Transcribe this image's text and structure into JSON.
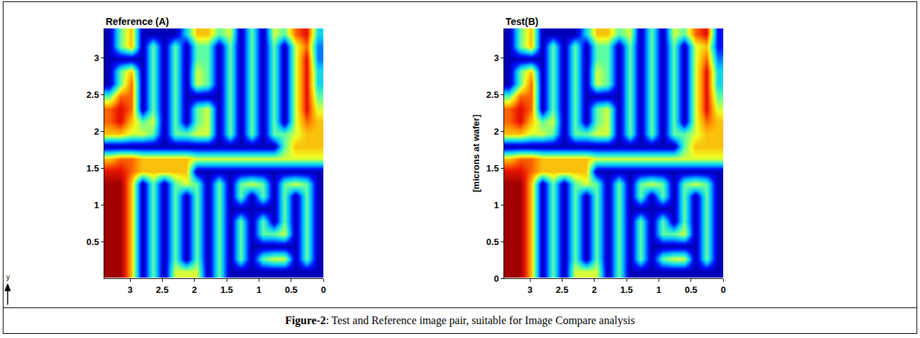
{
  "chart_data": [
    {
      "type": "heatmap",
      "title": "Reference (A)",
      "annotations": [
        "y"
      ],
      "x": [
        3.32,
        3.15,
        2.98,
        2.81,
        2.64,
        2.47,
        2.3,
        2.13,
        1.96,
        1.79,
        1.62,
        1.45,
        1.28,
        1.11,
        0.94,
        0.77,
        0.6,
        0.43,
        0.26,
        0.09
      ],
      "y": [
        3.32,
        3.15,
        2.98,
        2.81,
        2.64,
        2.47,
        2.3,
        2.13,
        1.96,
        1.79,
        1.62,
        1.45,
        1.28,
        1.11,
        0.94,
        0.77,
        0.6,
        0.43,
        0.26,
        0.09
      ],
      "z": [
        [
          0,
          4,
          6,
          0,
          0,
          0,
          0,
          3,
          6,
          6,
          4,
          5,
          0,
          4,
          0,
          5,
          4,
          7,
          8,
          3
        ],
        [
          0,
          4,
          6,
          0,
          4,
          0,
          4,
          0,
          4,
          4,
          0,
          4,
          0,
          4,
          0,
          4,
          0,
          5,
          7,
          2
        ],
        [
          0,
          0,
          0,
          0,
          4,
          0,
          4,
          0,
          4,
          4,
          0,
          4,
          0,
          4,
          0,
          4,
          0,
          5,
          8,
          2
        ],
        [
          0,
          4,
          6,
          0,
          4,
          0,
          4,
          0,
          5,
          4,
          0,
          4,
          0,
          4,
          0,
          4,
          0,
          5,
          8,
          3
        ],
        [
          0,
          4,
          7,
          0,
          4,
          0,
          4,
          0,
          5,
          4,
          0,
          4,
          0,
          4,
          0,
          4,
          0,
          5,
          8,
          3
        ],
        [
          4,
          7,
          7,
          0,
          4,
          0,
          4,
          0,
          0,
          0,
          0,
          4,
          0,
          4,
          0,
          4,
          0,
          5,
          8,
          4
        ],
        [
          7,
          8,
          7,
          0,
          4,
          0,
          4,
          0,
          4,
          5,
          0,
          4,
          0,
          4,
          0,
          4,
          0,
          5,
          8,
          5
        ],
        [
          7,
          8,
          6,
          4,
          5,
          0,
          4,
          0,
          4,
          5,
          0,
          4,
          0,
          4,
          0,
          4,
          0,
          5,
          7,
          6
        ],
        [
          6,
          6,
          5,
          5,
          4,
          0,
          4,
          4,
          5,
          5,
          0,
          4,
          0,
          4,
          0,
          4,
          4,
          5,
          6,
          6
        ],
        [
          0,
          0,
          0,
          0,
          0,
          0,
          0,
          0,
          0,
          0,
          0,
          0,
          0,
          0,
          0,
          0,
          4,
          6,
          6,
          6
        ],
        [
          6,
          7,
          7,
          6,
          6,
          6,
          6,
          6,
          5,
          5,
          5,
          5,
          5,
          5,
          5,
          5,
          5,
          5,
          5,
          5
        ],
        [
          8,
          8,
          7,
          6,
          6,
          6,
          6,
          6,
          0,
          0,
          0,
          0,
          0,
          0,
          0,
          0,
          0,
          0,
          0,
          0
        ],
        [
          9,
          9,
          6,
          0,
          4,
          0,
          4,
          5,
          4,
          0,
          4,
          0,
          4,
          5,
          4,
          0,
          4,
          5,
          4,
          0
        ],
        [
          9,
          9,
          6,
          0,
          4,
          0,
          4,
          0,
          4,
          0,
          4,
          0,
          4,
          0,
          4,
          0,
          4,
          0,
          4,
          0
        ],
        [
          9,
          9,
          6,
          0,
          4,
          0,
          4,
          0,
          4,
          0,
          4,
          0,
          0,
          0,
          0,
          0,
          4,
          0,
          4,
          0
        ],
        [
          9,
          9,
          6,
          0,
          4,
          0,
          4,
          0,
          4,
          0,
          4,
          0,
          4,
          0,
          4,
          0,
          4,
          0,
          4,
          0
        ],
        [
          9,
          9,
          6,
          0,
          4,
          0,
          4,
          0,
          4,
          0,
          4,
          0,
          4,
          0,
          4,
          4,
          5,
          0,
          4,
          0
        ],
        [
          9,
          9,
          6,
          0,
          4,
          0,
          4,
          0,
          4,
          0,
          4,
          0,
          4,
          0,
          0,
          0,
          0,
          0,
          4,
          0
        ],
        [
          9,
          9,
          6,
          0,
          4,
          0,
          4,
          0,
          4,
          0,
          4,
          0,
          4,
          0,
          4,
          5,
          5,
          0,
          4,
          0
        ],
        [
          9,
          9,
          6,
          0,
          4,
          0,
          5,
          5,
          5,
          0,
          4,
          0,
          0,
          0,
          0,
          0,
          0,
          0,
          0,
          0
        ]
      ],
      "zlim": [
        0,
        9
      ],
      "xlim": [
        3.4,
        0
      ],
      "xticks": [
        3,
        2.5,
        2,
        1.5,
        1,
        0.5,
        0
      ],
      "ylim": [
        0,
        3.4
      ],
      "yticks": [
        0.5,
        1,
        1.5,
        2,
        2.5,
        3
      ]
    },
    {
      "type": "heatmap",
      "title": "Test(B)",
      "y_label": "[microns at wafer]",
      "x": [
        3.32,
        3.15,
        2.98,
        2.81,
        2.64,
        2.47,
        2.3,
        2.13,
        1.96,
        1.79,
        1.62,
        1.45,
        1.28,
        1.11,
        0.94,
        0.77,
        0.6,
        0.43,
        0.26,
        0.09
      ],
      "y": [
        3.32,
        3.15,
        2.98,
        2.81,
        2.64,
        2.47,
        2.3,
        2.13,
        1.96,
        1.79,
        1.62,
        1.45,
        1.28,
        1.11,
        0.94,
        0.77,
        0.6,
        0.43,
        0.26,
        0.09
      ],
      "z": [
        [
          0,
          4,
          6,
          0,
          0,
          0,
          0,
          3,
          6,
          6,
          4,
          5,
          0,
          4,
          0,
          5,
          4,
          7,
          8,
          1
        ],
        [
          0,
          4,
          6,
          0,
          4,
          0,
          4,
          0,
          4,
          4,
          0,
          4,
          0,
          4,
          0,
          4,
          0,
          5,
          6,
          1
        ],
        [
          0,
          0,
          0,
          0,
          4,
          0,
          4,
          0,
          4,
          4,
          0,
          4,
          0,
          4,
          0,
          4,
          0,
          5,
          7,
          2
        ],
        [
          0,
          4,
          6,
          0,
          4,
          0,
          4,
          0,
          5,
          4,
          0,
          4,
          0,
          4,
          0,
          4,
          0,
          5,
          8,
          3
        ],
        [
          0,
          4,
          7,
          0,
          4,
          0,
          4,
          0,
          5,
          4,
          0,
          4,
          0,
          4,
          0,
          4,
          0,
          5,
          8,
          3
        ],
        [
          4,
          7,
          7,
          0,
          4,
          0,
          4,
          0,
          0,
          0,
          0,
          4,
          0,
          4,
          0,
          4,
          0,
          5,
          8,
          4
        ],
        [
          7,
          8,
          7,
          0,
          4,
          0,
          4,
          0,
          4,
          5,
          0,
          4,
          0,
          4,
          0,
          4,
          0,
          5,
          8,
          5
        ],
        [
          7,
          8,
          6,
          4,
          5,
          0,
          4,
          0,
          4,
          5,
          0,
          4,
          0,
          4,
          0,
          4,
          0,
          5,
          7,
          6
        ],
        [
          6,
          6,
          5,
          5,
          4,
          0,
          4,
          4,
          5,
          5,
          0,
          4,
          0,
          4,
          0,
          4,
          4,
          5,
          6,
          6
        ],
        [
          0,
          0,
          0,
          0,
          0,
          0,
          0,
          0,
          0,
          0,
          0,
          0,
          0,
          0,
          0,
          0,
          4,
          6,
          6,
          6
        ],
        [
          6,
          7,
          7,
          6,
          6,
          6,
          6,
          6,
          5,
          5,
          5,
          5,
          5,
          5,
          5,
          5,
          5,
          5,
          5,
          5
        ],
        [
          8,
          8,
          7,
          6,
          6,
          6,
          6,
          6,
          0,
          0,
          0,
          0,
          0,
          0,
          0,
          0,
          0,
          0,
          0,
          0
        ],
        [
          9,
          9,
          6,
          0,
          4,
          0,
          4,
          5,
          4,
          0,
          4,
          0,
          4,
          5,
          4,
          0,
          4,
          5,
          4,
          0
        ],
        [
          9,
          9,
          6,
          0,
          4,
          0,
          4,
          0,
          4,
          0,
          4,
          0,
          4,
          0,
          4,
          0,
          4,
          0,
          4,
          0
        ],
        [
          9,
          9,
          6,
          0,
          4,
          0,
          4,
          0,
          4,
          0,
          4,
          0,
          0,
          0,
          0,
          0,
          4,
          0,
          4,
          0
        ],
        [
          9,
          9,
          6,
          0,
          4,
          0,
          4,
          0,
          4,
          0,
          4,
          0,
          4,
          0,
          4,
          0,
          4,
          0,
          4,
          0
        ],
        [
          9,
          9,
          6,
          0,
          4,
          0,
          4,
          0,
          4,
          0,
          4,
          0,
          4,
          0,
          4,
          4,
          5,
          0,
          4,
          0
        ],
        [
          9,
          9,
          6,
          0,
          4,
          0,
          4,
          0,
          4,
          0,
          4,
          0,
          4,
          0,
          0,
          0,
          0,
          0,
          4,
          0
        ],
        [
          9,
          9,
          6,
          0,
          4,
          0,
          4,
          0,
          4,
          0,
          4,
          0,
          4,
          0,
          4,
          5,
          5,
          0,
          4,
          0
        ],
        [
          9,
          9,
          6,
          0,
          4,
          0,
          5,
          5,
          5,
          0,
          4,
          0,
          0,
          0,
          0,
          0,
          0,
          0,
          0,
          0
        ]
      ],
      "zlim": [
        0,
        9
      ],
      "xlim": [
        3.4,
        0
      ],
      "xticks": [
        3,
        2.5,
        2,
        1.5,
        1,
        0.5,
        0
      ],
      "ylim": [
        0,
        3.4
      ],
      "yticks": [
        0,
        0.5,
        1,
        1.5,
        2,
        2.5,
        3
      ]
    }
  ],
  "caption": {
    "label": "Figure-2",
    "text": ": Test and Reference image pair, suitable for Image Compare analysis"
  }
}
